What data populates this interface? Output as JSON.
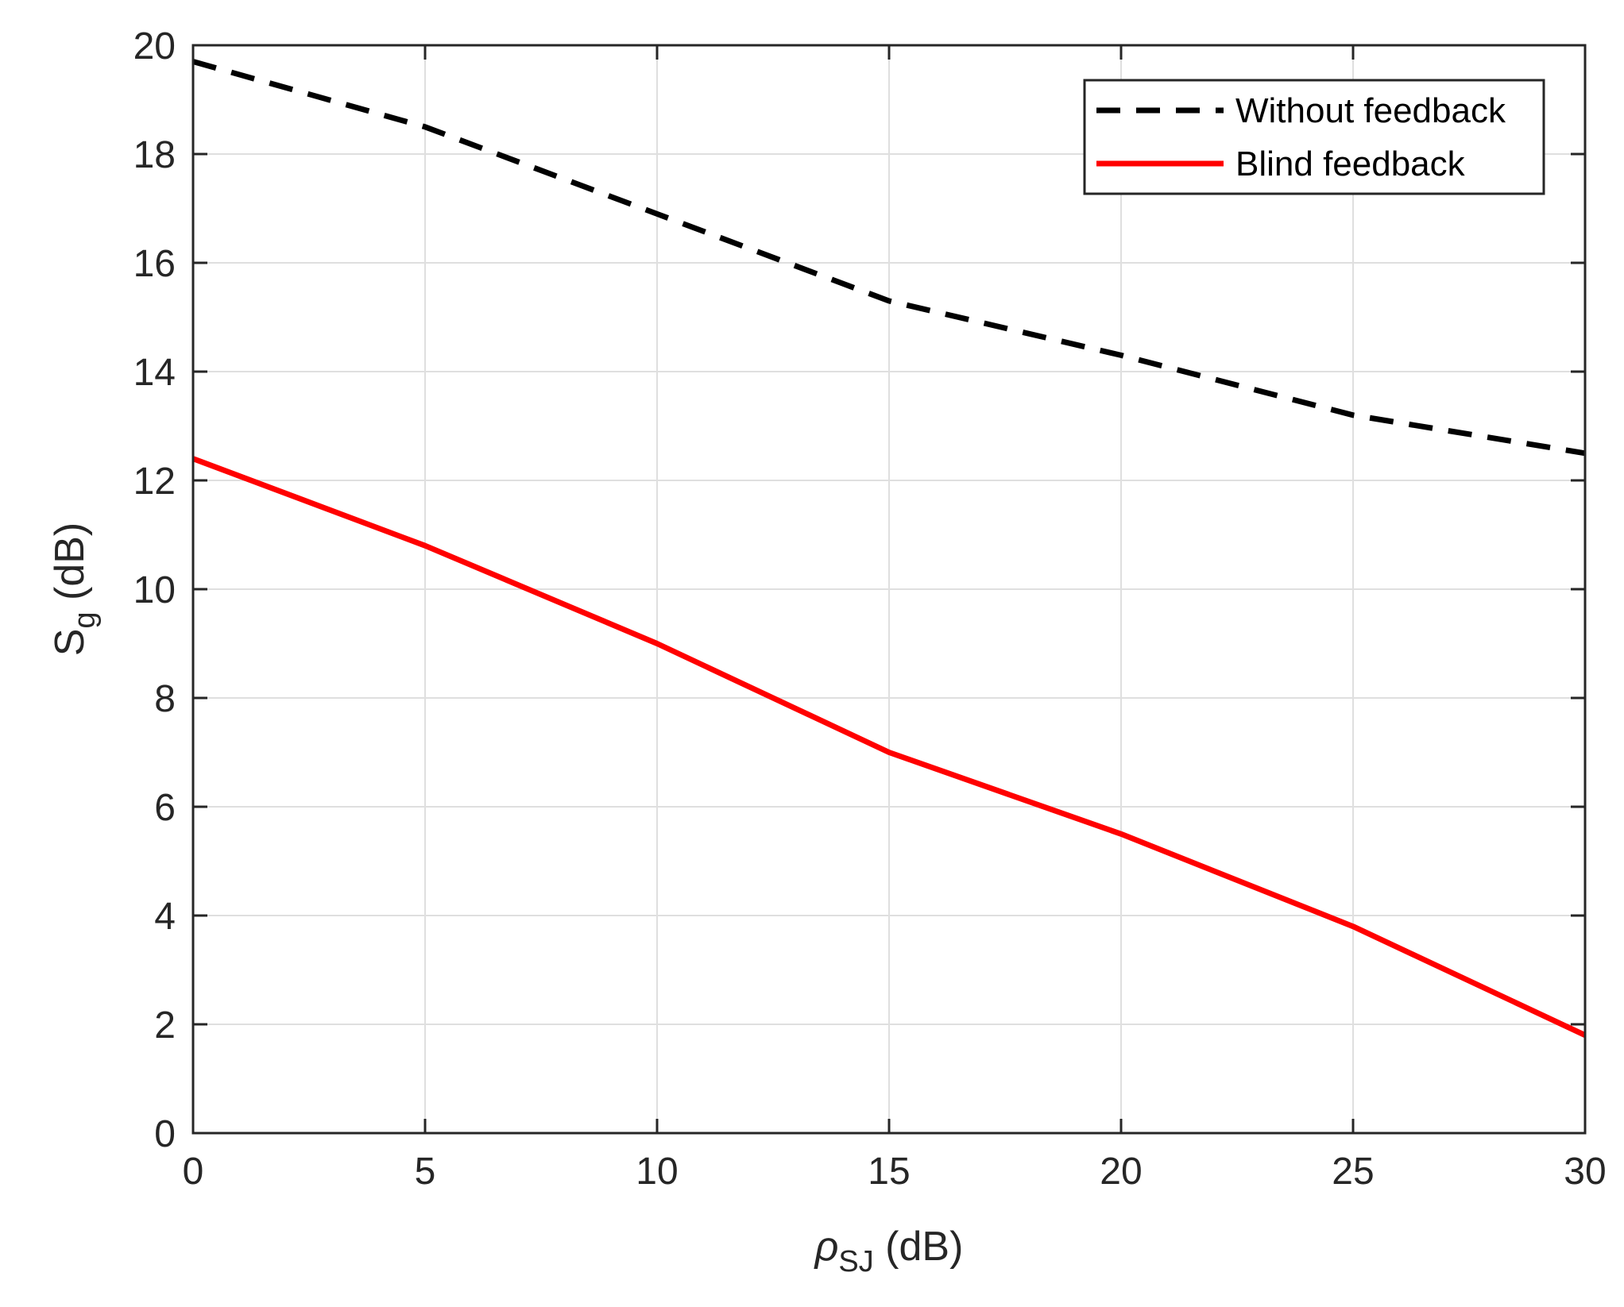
{
  "chart_data": {
    "type": "line",
    "title": "",
    "xlabel": {
      "symbol": "ρ",
      "subscript": "SJ",
      "suffix": " (dB)"
    },
    "ylabel": {
      "symbol": "S",
      "subscript": "g",
      "suffix": " (dB)"
    },
    "xlim": [
      0,
      30
    ],
    "ylim": [
      0,
      20
    ],
    "xticks": [
      0,
      5,
      10,
      15,
      20,
      25,
      30
    ],
    "yticks": [
      0,
      2,
      4,
      6,
      8,
      10,
      12,
      14,
      16,
      18,
      20
    ],
    "grid": true,
    "legend_position": "top-right",
    "x": [
      0,
      5,
      10,
      15,
      20,
      25,
      30
    ],
    "series": [
      {
        "name": "Without feedback",
        "color": "#000000",
        "style": "dashed",
        "values": [
          19.7,
          18.5,
          16.9,
          15.3,
          14.3,
          13.2,
          12.5
        ]
      },
      {
        "name": "Blind feedback",
        "color": "#ff0000",
        "style": "solid",
        "values": [
          12.4,
          10.8,
          9.0,
          7.0,
          5.5,
          3.8,
          1.8
        ]
      }
    ]
  }
}
